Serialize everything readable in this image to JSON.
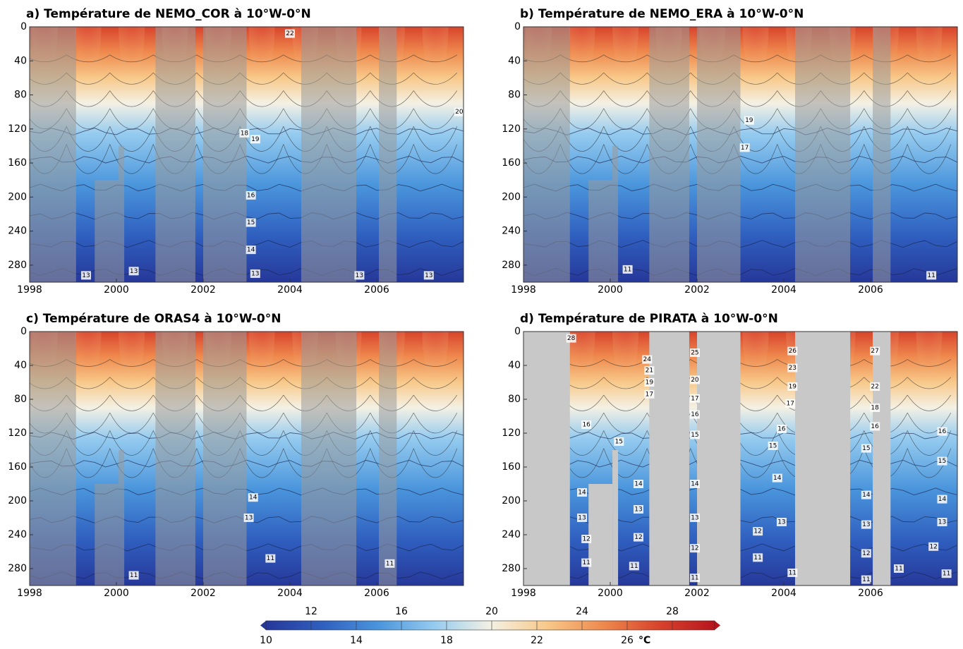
{
  "chart_data": [
    {
      "type": "contour",
      "title": "a) Température de NEMO_COR à 10°W-0°N",
      "xlim": [
        1998,
        2008
      ],
      "ylim": [
        0,
        300
      ],
      "xticks": [
        1998,
        2000,
        2002,
        2004,
        2006
      ],
      "yticks": [
        0,
        40,
        80,
        120,
        160,
        200,
        240,
        280
      ],
      "mask_style": "shaded",
      "gaps": [
        [
          1998,
          1999.07,
          0
        ],
        [
          1999.5,
          2000.05,
          180
        ],
        [
          2000.05,
          2000.18,
          140
        ],
        [
          2000.9,
          2001.82,
          0
        ],
        [
          2002.0,
          2003.0,
          0
        ],
        [
          2004.26,
          2005.53,
          0
        ],
        [
          2006.05,
          2006.46,
          0
        ]
      ],
      "contour_labels": [
        {
          "x": 2002.95,
          "y": 125,
          "value": 18
        },
        {
          "x": 2003.2,
          "y": 132,
          "value": 19
        },
        {
          "x": 2003.1,
          "y": 198,
          "value": 16
        },
        {
          "x": 2003.1,
          "y": 230,
          "value": 15
        },
        {
          "x": 2003.1,
          "y": 262,
          "value": 14
        },
        {
          "x": 2003.2,
          "y": 290,
          "value": 13
        },
        {
          "x": 2004,
          "y": 8,
          "value": 22
        },
        {
          "x": 2007.9,
          "y": 100,
          "value": 20
        },
        {
          "x": 1999.3,
          "y": 292,
          "value": 13
        },
        {
          "x": 2000.4,
          "y": 287,
          "value": 13
        },
        {
          "x": 2005.6,
          "y": 292,
          "value": 13
        },
        {
          "x": 2007.2,
          "y": 292,
          "value": 13
        }
      ]
    },
    {
      "type": "contour",
      "title": "b) Température de NEMO_ERA à 10°W-0°N",
      "xlim": [
        1998,
        2008
      ],
      "ylim": [
        0,
        300
      ],
      "xticks": [
        1998,
        2000,
        2002,
        2004,
        2006
      ],
      "yticks": [
        0,
        40,
        80,
        120,
        160,
        200,
        240,
        280
      ],
      "mask_style": "shaded",
      "gaps": [
        [
          1998,
          1999.07,
          0
        ],
        [
          1999.5,
          2000.05,
          180
        ],
        [
          2000.05,
          2000.18,
          140
        ],
        [
          2000.9,
          2001.82,
          0
        ],
        [
          2002.0,
          2003.0,
          0
        ],
        [
          2004.26,
          2005.53,
          0
        ],
        [
          2006.05,
          2006.46,
          0
        ]
      ],
      "contour_labels": [
        {
          "x": 2003.2,
          "y": 110,
          "value": 19
        },
        {
          "x": 2003.1,
          "y": 142,
          "value": 17
        },
        {
          "x": 2000.4,
          "y": 285,
          "value": 11
        },
        {
          "x": 2007.4,
          "y": 292,
          "value": 11
        }
      ]
    },
    {
      "type": "contour",
      "title": "c) Température de ORAS4 à 10°W-0°N",
      "xlim": [
        1998,
        2008
      ],
      "ylim": [
        0,
        300
      ],
      "xticks": [
        1998,
        2000,
        2002,
        2004,
        2006
      ],
      "yticks": [
        0,
        40,
        80,
        120,
        160,
        200,
        240,
        280
      ],
      "mask_style": "shaded",
      "gaps": [
        [
          1998,
          1999.07,
          0
        ],
        [
          1999.5,
          2000.05,
          180
        ],
        [
          2000.05,
          2000.18,
          140
        ],
        [
          2000.9,
          2001.82,
          0
        ],
        [
          2002.0,
          2003.0,
          0
        ],
        [
          2004.26,
          2005.53,
          0
        ],
        [
          2006.05,
          2006.46,
          0
        ]
      ],
      "contour_labels": [
        {
          "x": 2003.15,
          "y": 196,
          "value": 14
        },
        {
          "x": 2003.05,
          "y": 220,
          "value": 13
        },
        {
          "x": 2003.55,
          "y": 268,
          "value": 11
        },
        {
          "x": 2000.4,
          "y": 288,
          "value": 11
        },
        {
          "x": 2006.3,
          "y": 274,
          "value": 11
        }
      ]
    },
    {
      "type": "contour",
      "title": "d) Température de PIRATA à 10°W-0°N",
      "xlim": [
        1998,
        2008
      ],
      "ylim": [
        0,
        300
      ],
      "xticks": [
        1998,
        2000,
        2002,
        2004,
        2006
      ],
      "yticks": [
        0,
        40,
        80,
        120,
        160,
        200,
        240,
        280
      ],
      "mask_style": "opaque",
      "gaps": [
        [
          1998,
          1999.07,
          0
        ],
        [
          1999.5,
          2000.05,
          180
        ],
        [
          2000.05,
          2000.18,
          140
        ],
        [
          2000.9,
          2001.82,
          0
        ],
        [
          2002.0,
          2003.0,
          0
        ],
        [
          2004.26,
          2005.53,
          0
        ],
        [
          2006.05,
          2006.46,
          0
        ]
      ],
      "contour_labels": [
        {
          "x": 1999.1,
          "y": 8,
          "value": 28
        },
        {
          "x": 2000.85,
          "y": 33,
          "value": 24
        },
        {
          "x": 2000.9,
          "y": 46,
          "value": 21
        },
        {
          "x": 2000.9,
          "y": 60,
          "value": 19
        },
        {
          "x": 2000.9,
          "y": 74,
          "value": 17
        },
        {
          "x": 2001.95,
          "y": 25,
          "value": 25
        },
        {
          "x": 2001.95,
          "y": 57,
          "value": 20
        },
        {
          "x": 2001.95,
          "y": 79,
          "value": 17
        },
        {
          "x": 2001.95,
          "y": 98,
          "value": 16
        },
        {
          "x": 2001.95,
          "y": 122,
          "value": 15
        },
        {
          "x": 2001.95,
          "y": 180,
          "value": 14
        },
        {
          "x": 2001.95,
          "y": 220,
          "value": 13
        },
        {
          "x": 2001.95,
          "y": 256,
          "value": 12
        },
        {
          "x": 2001.95,
          "y": 291,
          "value": 11
        },
        {
          "x": 2004.2,
          "y": 23,
          "value": 26
        },
        {
          "x": 2004.2,
          "y": 43,
          "value": 23
        },
        {
          "x": 2004.2,
          "y": 65,
          "value": 19
        },
        {
          "x": 2004.15,
          "y": 85,
          "value": 17
        },
        {
          "x": 2006.1,
          "y": 23,
          "value": 27
        },
        {
          "x": 2006.1,
          "y": 65,
          "value": 22
        },
        {
          "x": 2006.1,
          "y": 90,
          "value": 18
        },
        {
          "x": 2006.1,
          "y": 112,
          "value": 16
        },
        {
          "x": 2005.9,
          "y": 138,
          "value": 15
        },
        {
          "x": 2005.9,
          "y": 193,
          "value": 14
        },
        {
          "x": 2005.9,
          "y": 228,
          "value": 13
        },
        {
          "x": 2005.9,
          "y": 262,
          "value": 12
        },
        {
          "x": 2005.9,
          "y": 293,
          "value": 11
        },
        {
          "x": 1999.45,
          "y": 110,
          "value": 16
        },
        {
          "x": 2000.2,
          "y": 130,
          "value": 15
        },
        {
          "x": 1999.35,
          "y": 190,
          "value": 14
        },
        {
          "x": 1999.35,
          "y": 220,
          "value": 13
        },
        {
          "x": 1999.45,
          "y": 245,
          "value": 12
        },
        {
          "x": 1999.45,
          "y": 273,
          "value": 11
        },
        {
          "x": 2000.65,
          "y": 180,
          "value": 14
        },
        {
          "x": 2000.65,
          "y": 210,
          "value": 13
        },
        {
          "x": 2000.65,
          "y": 243,
          "value": 12
        },
        {
          "x": 2000.55,
          "y": 277,
          "value": 11
        },
        {
          "x": 2003.95,
          "y": 115,
          "value": 16
        },
        {
          "x": 2003.75,
          "y": 135,
          "value": 15
        },
        {
          "x": 2003.85,
          "y": 173,
          "value": 14
        },
        {
          "x": 2003.95,
          "y": 225,
          "value": 13
        },
        {
          "x": 2003.4,
          "y": 236,
          "value": 12
        },
        {
          "x": 2003.4,
          "y": 267,
          "value": 11
        },
        {
          "x": 2004.2,
          "y": 285,
          "value": 11
        },
        {
          "x": 2007.65,
          "y": 118,
          "value": 16
        },
        {
          "x": 2007.65,
          "y": 153,
          "value": 15
        },
        {
          "x": 2007.65,
          "y": 198,
          "value": 14
        },
        {
          "x": 2007.65,
          "y": 225,
          "value": 13
        },
        {
          "x": 2007.45,
          "y": 254,
          "value": 12
        },
        {
          "x": 2007.75,
          "y": 286,
          "value": 11
        },
        {
          "x": 2006.65,
          "y": 280,
          "value": 11
        }
      ]
    },
    {
      "type": "colorbar",
      "unit": "°C",
      "clim": [
        10,
        28
      ],
      "ticks": [
        10,
        12,
        14,
        16,
        18,
        20,
        22,
        24,
        26,
        28
      ],
      "colormap": [
        "#26389a",
        "#2f5fbf",
        "#4a95dc",
        "#95cbef",
        "#f4f1e4",
        "#f8c98a",
        "#ef8a4e",
        "#d8432c",
        "#b7151d"
      ]
    }
  ]
}
